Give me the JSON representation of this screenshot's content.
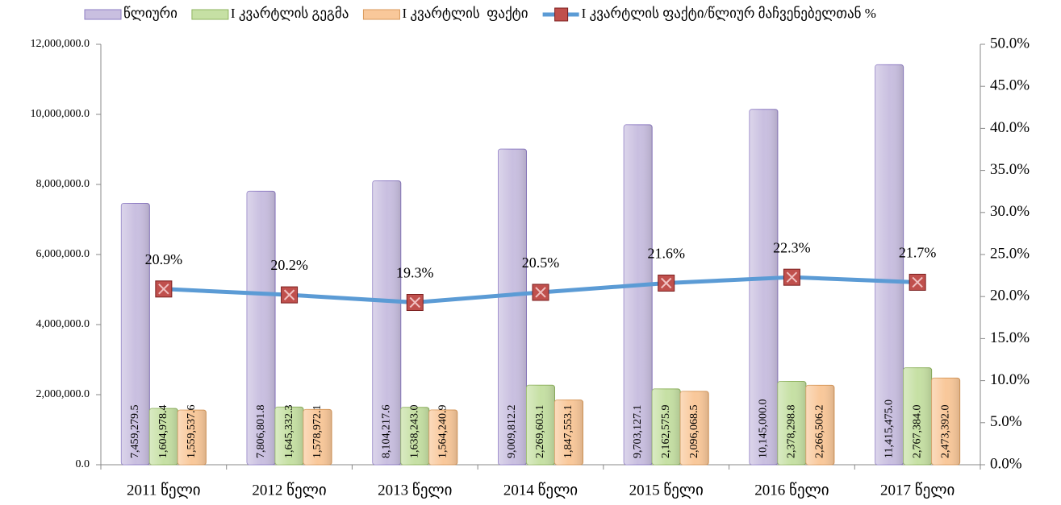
{
  "chart_data": {
    "type": "bar_line",
    "categories": [
      "2011 წელი",
      "2012 წელი",
      "2013 წელი",
      "2014 წელი",
      "2015 წელი",
      "2016 წელი",
      "2017 წელი"
    ],
    "series": [
      {
        "name": "წლიური",
        "color": "#c9bfe0",
        "stroke": "#8e7cc3",
        "values": [
          7459279.5,
          7806801.8,
          8104217.6,
          9009812.2,
          9703127.1,
          10145000.0,
          11415475.0
        ],
        "value_labels": [
          "7,459,279.5",
          "7,806,801.8",
          "8,104,217.6",
          "9,009,812.2",
          "9,703,127.1",
          "10,145,000.0",
          "11,415,475.0"
        ]
      },
      {
        "name": "I კვარტლის გეგმა",
        "color": "#c6e0a4",
        "stroke": "#8fb35f",
        "values": [
          1604978.4,
          1645332.3,
          1638243.0,
          2269603.1,
          2162575.9,
          2378298.8,
          2767384.0
        ],
        "value_labels": [
          "1,604,978.4",
          "1,645,332.3",
          "1,638,243.0",
          "2,269,603.1",
          "2,162,575.9",
          "2,378,298.8",
          "2,767,384.0"
        ]
      },
      {
        "name": "I კვარტლის  ფაქტი",
        "color": "#f9c89a",
        "stroke": "#d99a5c",
        "values": [
          1559537.6,
          1578972.1,
          1564240.9,
          1847553.1,
          2096068.5,
          2266506.2,
          2473392.0
        ],
        "value_labels": [
          "1,559,537.6",
          "1,578,972.1",
          "1,564,240.9",
          "1,847,553.1",
          "2,096,068.5",
          "2,266,506.2",
          "2,473,392.0"
        ]
      },
      {
        "name": "I კვარტლის ფაქტი/წლიურ მაჩვენებელთან %",
        "type": "line",
        "axis": "y2",
        "color": "#5b9bd5",
        "marker_color": "#c0504d",
        "values": [
          20.9,
          20.2,
          19.3,
          20.5,
          21.6,
          22.3,
          21.7
        ],
        "value_labels": [
          "20.9%",
          "20.2%",
          "19.3%",
          "20.5%",
          "21.6%",
          "22.3%",
          "21.7%"
        ]
      }
    ],
    "ylim": [
      0,
      12000000
    ],
    "yticks": [
      {
        "value": 0,
        "label": "0.0"
      },
      {
        "value": 2000000,
        "label": "2,000,000.0"
      },
      {
        "value": 4000000,
        "label": "4,000,000.0"
      },
      {
        "value": 6000000,
        "label": "6,000,000.0"
      },
      {
        "value": 8000000,
        "label": "8,000,000.0"
      },
      {
        "value": 10000000,
        "label": "10,000,000.0"
      },
      {
        "value": 12000000,
        "label": "12,000,000.0"
      }
    ],
    "y2lim": [
      0,
      50
    ],
    "y2ticks": [
      {
        "value": 0,
        "label": "0.0%"
      },
      {
        "value": 5,
        "label": "5.0%"
      },
      {
        "value": 10,
        "label": "10.0%"
      },
      {
        "value": 15,
        "label": "15.0%"
      },
      {
        "value": 20,
        "label": "20.0%"
      },
      {
        "value": 25,
        "label": "25.0%"
      },
      {
        "value": 30,
        "label": "30.0%"
      },
      {
        "value": 35,
        "label": "35.0%"
      },
      {
        "value": 40,
        "label": "40.0%"
      },
      {
        "value": 45,
        "label": "45.0%"
      },
      {
        "value": 50,
        "label": "50.0%"
      }
    ],
    "grid": false,
    "legend": "top"
  }
}
